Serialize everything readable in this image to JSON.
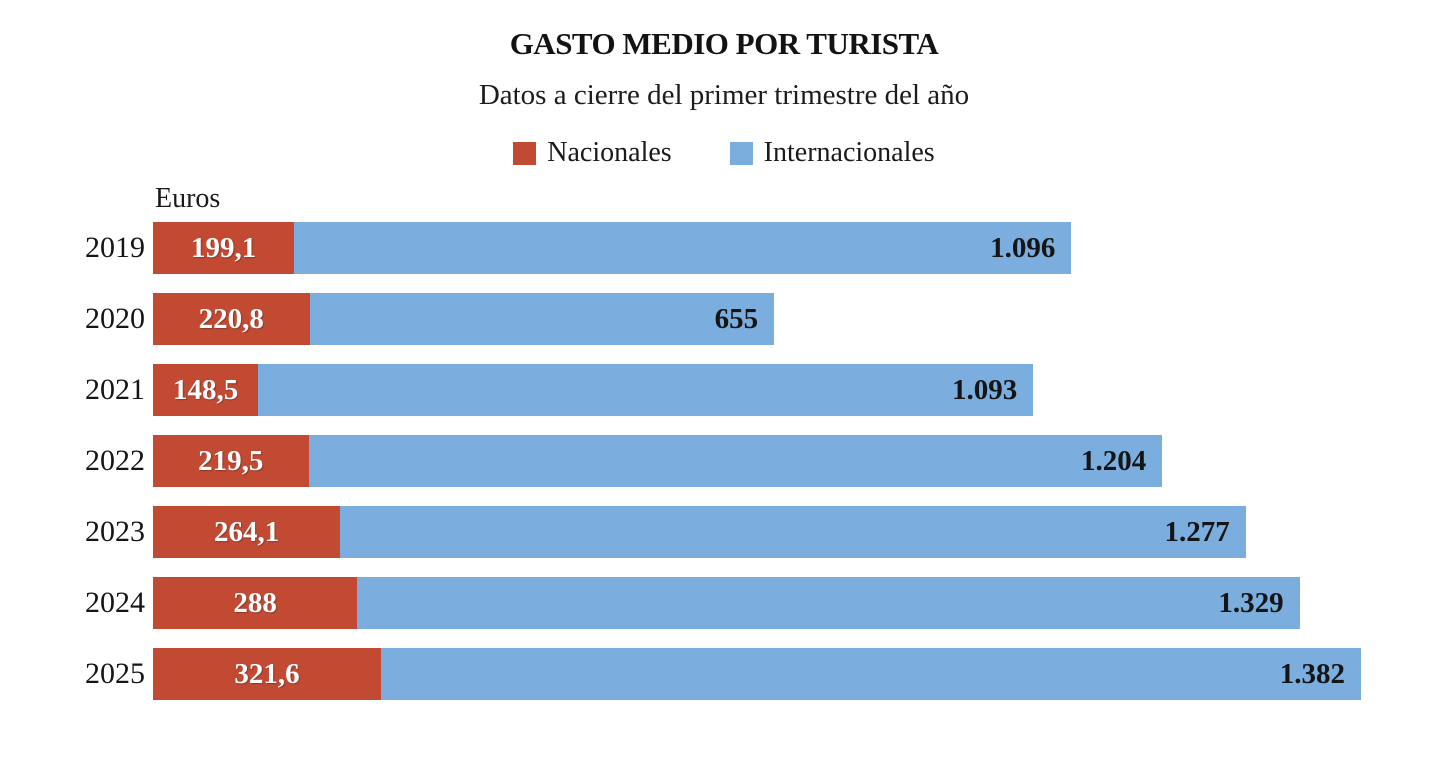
{
  "header": {
    "title": "GASTO MEDIO POR TURISTA",
    "subtitle": "Datos a cierre del primer trimestre del año",
    "unit_label": "Euros"
  },
  "legend": [
    {
      "label": "Nacionales",
      "color": "#c24a33"
    },
    {
      "label": "Internacionales",
      "color": "#7badde"
    }
  ],
  "colors": {
    "nacionales": "#c24a33",
    "internacionales": "#7badde",
    "value_on_red": "#ffffff",
    "value_on_blue": "#151515",
    "text": "#1a1a1a"
  },
  "chart_data": {
    "type": "bar",
    "orientation": "horizontal",
    "stacked": true,
    "title": "GASTO MEDIO POR TURISTA",
    "subtitle": "Datos a cierre del primer trimestre del año",
    "xlabel": "Euros",
    "ylabel": "",
    "xlim": [
      0,
      1710
    ],
    "grid": false,
    "legend_position": "top",
    "categories": [
      "2019",
      "2020",
      "2021",
      "2022",
      "2023",
      "2024",
      "2025"
    ],
    "series": [
      {
        "name": "Nacionales",
        "values": [
          199.1,
          220.8,
          148.5,
          219.5,
          264.1,
          288,
          321.6
        ],
        "display": [
          "199,1",
          "220,8",
          "148,5",
          "219,5",
          "264,1",
          "288",
          "321,6"
        ]
      },
      {
        "name": "Internacionales",
        "values": [
          1096,
          655,
          1093,
          1204,
          1277,
          1329,
          1382
        ],
        "display": [
          "1.096",
          "655",
          "1.093",
          "1.204",
          "1.277",
          "1.329",
          "1.382"
        ]
      }
    ]
  }
}
